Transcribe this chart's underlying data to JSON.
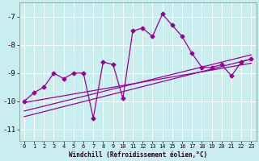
{
  "title": "",
  "xlabel": "Windchill (Refroidissement éolien,°C)",
  "ylabel": "",
  "bg_color": "#c8eef0",
  "line_color": "#990099",
  "grid_color": "#aadddd",
  "xlim": [
    -0.5,
    23.5
  ],
  "ylim": [
    -11.4,
    -6.5
  ],
  "yticks": [
    -11,
    -10,
    -9,
    -8,
    -7
  ],
  "xticks": [
    0,
    1,
    2,
    3,
    4,
    5,
    6,
    7,
    8,
    9,
    10,
    11,
    12,
    13,
    14,
    15,
    16,
    17,
    18,
    19,
    20,
    21,
    22,
    23
  ],
  "main_x": [
    0,
    1,
    2,
    3,
    4,
    5,
    6,
    7,
    8,
    9,
    10,
    11,
    12,
    13,
    14,
    15,
    16,
    17,
    18,
    19,
    20,
    21,
    22,
    23
  ],
  "main_y": [
    -10.0,
    -9.7,
    -9.5,
    -9.0,
    -9.2,
    -9.0,
    -9.0,
    -10.6,
    -8.6,
    -8.7,
    -9.9,
    -7.5,
    -7.4,
    -7.7,
    -6.9,
    -7.3,
    -7.7,
    -8.3,
    -8.8,
    -8.8,
    -8.7,
    -9.1,
    -8.6,
    -8.5
  ],
  "trend_lines": [
    {
      "x0": 0,
      "y0": -10.35,
      "x1": 23,
      "y1": -8.35
    },
    {
      "x0": 0,
      "y0": -10.05,
      "x1": 23,
      "y1": -8.65
    },
    {
      "x0": 0,
      "y0": -10.55,
      "x1": 23,
      "y1": -8.5
    }
  ]
}
